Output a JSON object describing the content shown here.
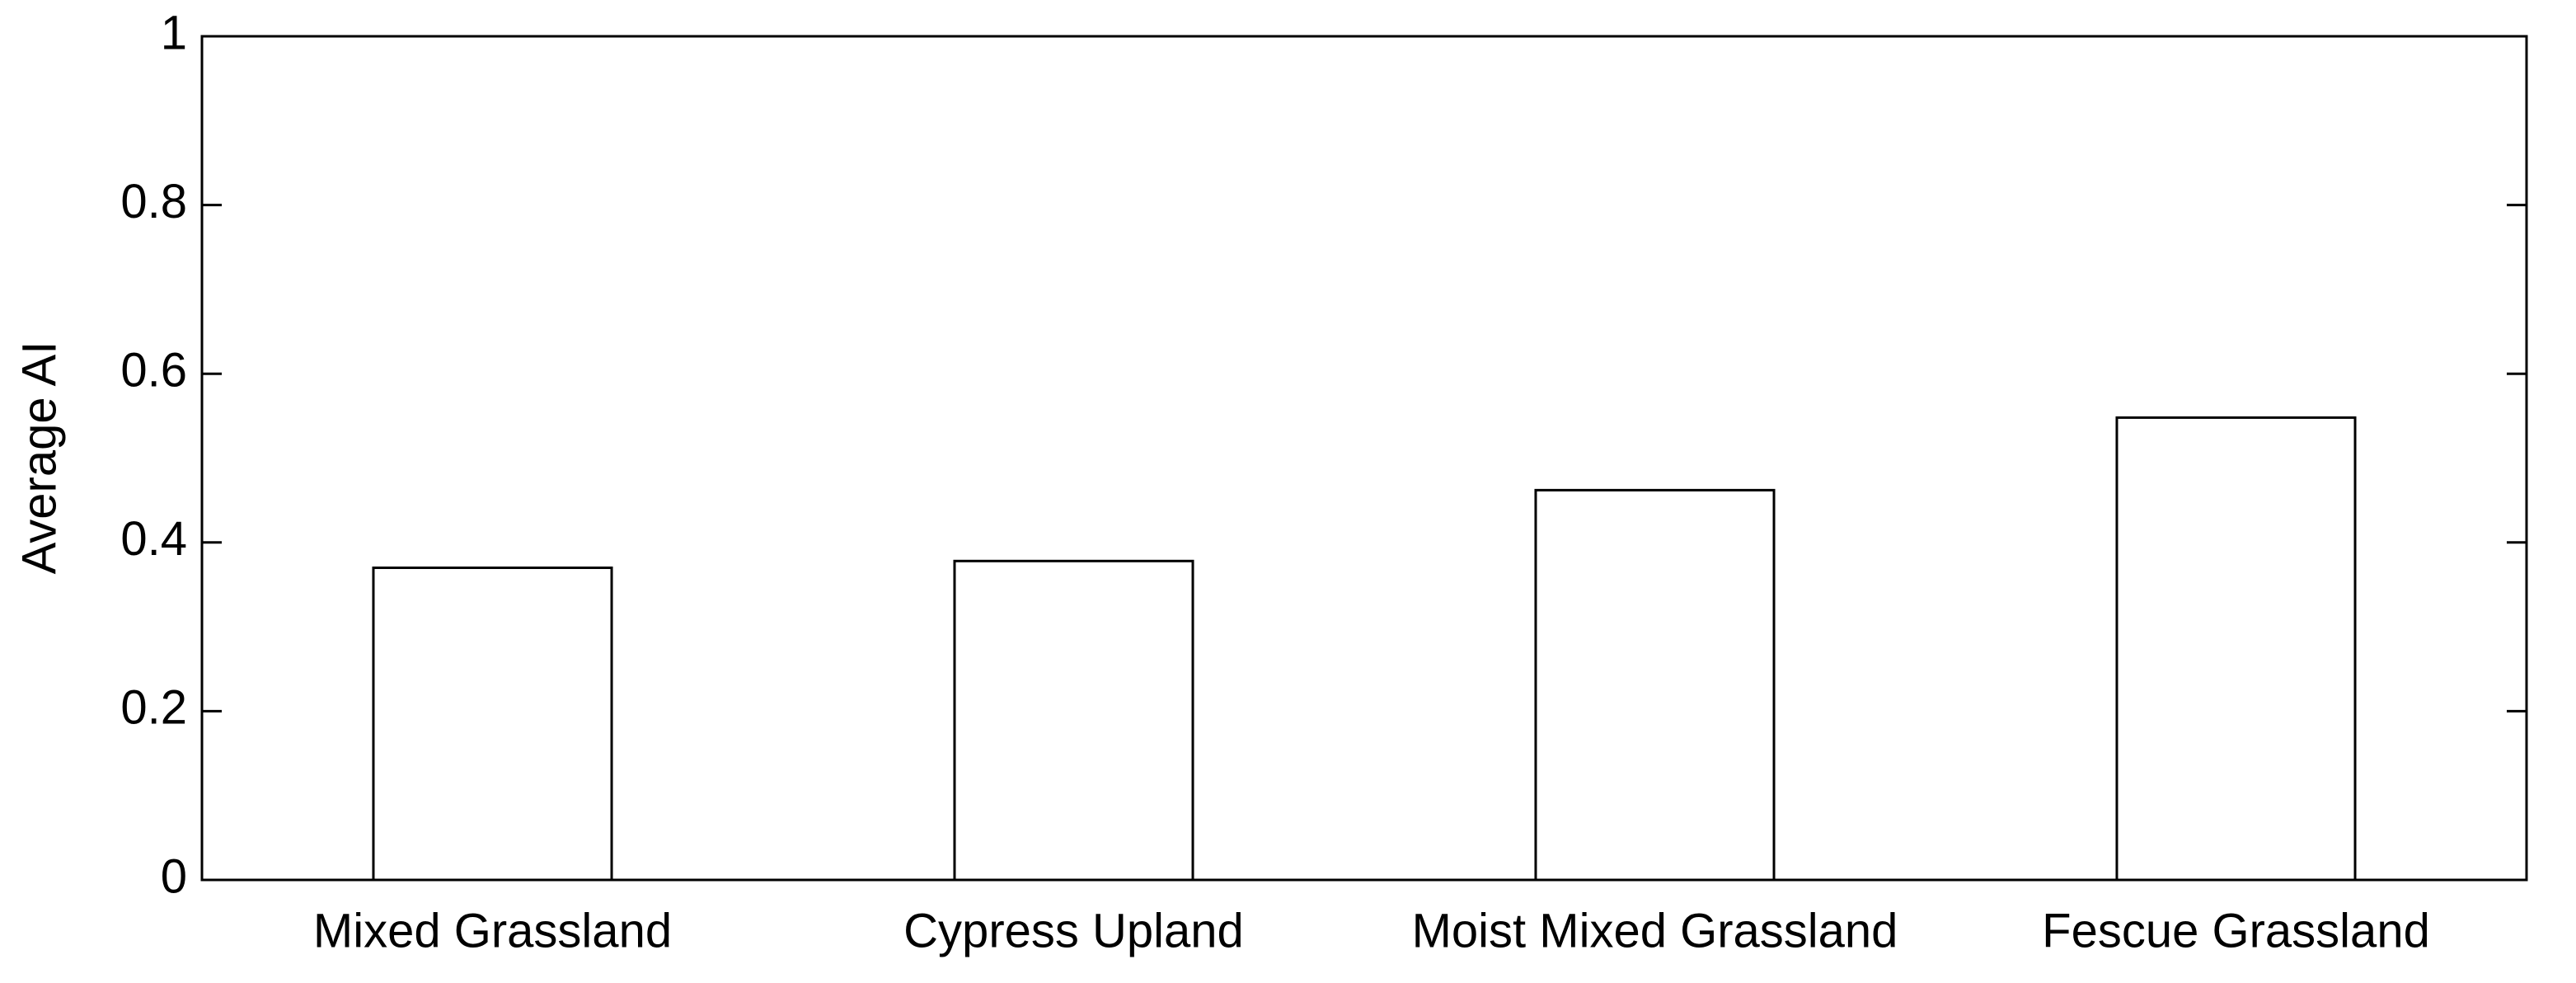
{
  "chart_data": {
    "type": "bar",
    "y_label": "Average AI",
    "categories": [
      "Mixed Grassland",
      "Cypress Upland",
      "Moist Mixed Grassland",
      "Fescue Grassland"
    ],
    "values": [
      0.37,
      0.378,
      0.462,
      0.548
    ],
    "color": "#ffffff",
    "ylim": [
      0,
      1
    ],
    "yticks": [
      0,
      0.2,
      0.4,
      0.6,
      0.8,
      1
    ],
    "grid": false
  }
}
